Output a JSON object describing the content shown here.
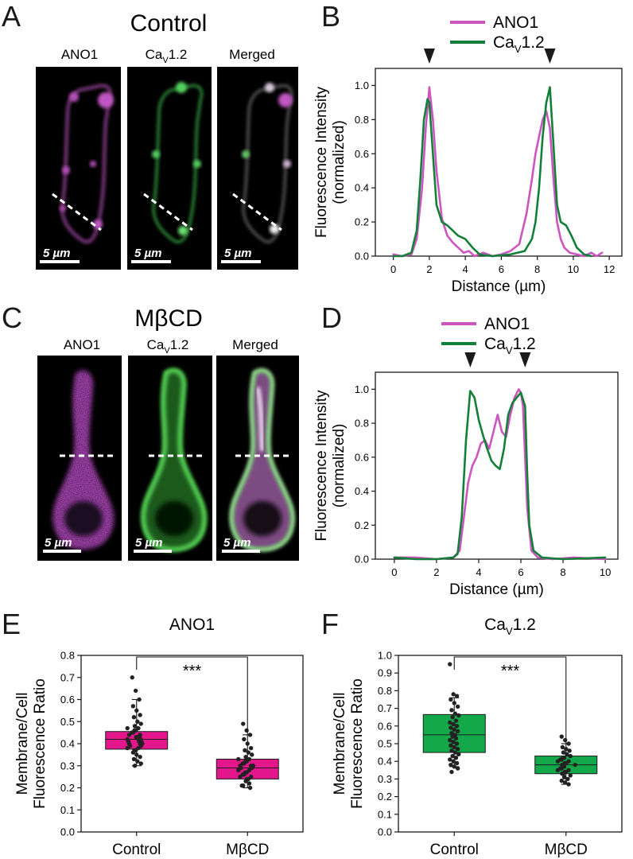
{
  "panel_letters": [
    "A",
    "B",
    "C",
    "D",
    "E",
    "F"
  ],
  "colors": {
    "ano1": "#cc55c0",
    "cav": "#13803a",
    "box_ano1": "#e3178b",
    "box_cav": "#13a84a",
    "axis": "#1a1a1a"
  },
  "icons": {
    "marker": "black-down-triangle-icon",
    "scale": "white-scale-bar"
  },
  "panel_A": {
    "title": "Control",
    "channels": [
      {
        "label": "ANO1",
        "sub": ""
      },
      {
        "label": "Ca",
        "sub": "V",
        "suffix": "1.2"
      },
      {
        "label": "Merged",
        "sub": ""
      }
    ],
    "scale_label": "5 µm"
  },
  "panel_C": {
    "title": "MβCD",
    "channels": [
      {
        "label": "ANO1",
        "sub": ""
      },
      {
        "label": "Ca",
        "sub": "V",
        "suffix": "1.2"
      },
      {
        "label": "Merged",
        "sub": ""
      }
    ],
    "scale_label": "5 µm"
  },
  "chart_data": [
    {
      "id": "B",
      "type": "line",
      "title": "",
      "xlabel": "Distance (µm)",
      "ylabel_lines": [
        "Fluorescence Intensity",
        "(normalized)"
      ],
      "xlim": [
        -1,
        12.7
      ],
      "ylim": [
        0,
        1.1
      ],
      "xticks": [
        0,
        2,
        4,
        6,
        8,
        10,
        12
      ],
      "yticks": [
        0.0,
        0.2,
        0.4,
        0.6,
        0.8,
        1.0
      ],
      "legend": "top-center",
      "markers_x": [
        2.0,
        8.7
      ],
      "series": [
        {
          "name": "ANO1",
          "sub": "",
          "color": "#cc55c0",
          "x": [
            0,
            0.5,
            1.0,
            1.3,
            1.6,
            1.8,
            2.0,
            2.2,
            2.4,
            2.7,
            3.0,
            3.3,
            3.6,
            3.9,
            4.2,
            4.5,
            5.0,
            5.5,
            6.0,
            6.5,
            7.0,
            7.4,
            7.7,
            7.9,
            8.1,
            8.3,
            8.5,
            8.7,
            8.9,
            9.1,
            9.3,
            9.5,
            9.8,
            10.2,
            10.6,
            11.0,
            11.3,
            11.6
          ],
          "y": [
            0.01,
            0.0,
            0.01,
            0.1,
            0.4,
            0.75,
            0.99,
            0.8,
            0.5,
            0.22,
            0.12,
            0.08,
            0.05,
            0.02,
            0.03,
            0.0,
            0.02,
            0.0,
            0.01,
            0.03,
            0.07,
            0.25,
            0.45,
            0.6,
            0.7,
            0.8,
            0.85,
            0.75,
            0.45,
            0.2,
            0.1,
            0.05,
            0.02,
            0.01,
            0.0,
            0.02,
            0.0,
            0.02
          ]
        },
        {
          "name": "Ca",
          "sub": "V",
          "suffix": "1.2",
          "color": "#13803a",
          "x": [
            0,
            0.5,
            1.0,
            1.3,
            1.5,
            1.7,
            1.9,
            2.0,
            2.2,
            2.4,
            2.7,
            3.0,
            3.3,
            3.6,
            4.0,
            4.4,
            4.8,
            5.5,
            6.5,
            7.3,
            7.7,
            7.9,
            8.1,
            8.3,
            8.5,
            8.7,
            8.9,
            9.1,
            9.3,
            9.6,
            9.9,
            10.2,
            10.6,
            11.0
          ],
          "y": [
            0.0,
            0.0,
            0.02,
            0.15,
            0.45,
            0.8,
            0.92,
            0.9,
            0.6,
            0.3,
            0.2,
            0.18,
            0.15,
            0.12,
            0.1,
            0.05,
            0.01,
            0.0,
            0.01,
            0.03,
            0.1,
            0.2,
            0.4,
            0.7,
            0.9,
            0.99,
            0.65,
            0.3,
            0.2,
            0.18,
            0.12,
            0.05,
            0.01,
            0.0
          ]
        }
      ]
    },
    {
      "id": "D",
      "type": "line",
      "title": "",
      "xlabel": "Distance (µm)",
      "ylabel_lines": [
        "Fluorescence Intensity",
        "(normalized)"
      ],
      "xlim": [
        -0.9,
        10.6
      ],
      "ylim": [
        0,
        1.1
      ],
      "xticks": [
        0,
        2,
        4,
        6,
        8,
        10
      ],
      "yticks": [
        0.0,
        0.2,
        0.4,
        0.6,
        0.8,
        1.0
      ],
      "legend": "top-center",
      "markers_x": [
        3.6,
        6.2
      ],
      "series": [
        {
          "name": "ANO1",
          "sub": "",
          "color": "#cc55c0",
          "x": [
            0,
            1,
            2,
            2.8,
            3.1,
            3.3,
            3.5,
            3.7,
            3.9,
            4.1,
            4.3,
            4.5,
            4.7,
            4.9,
            5.1,
            5.3,
            5.5,
            5.7,
            5.9,
            6.0,
            6.1,
            6.2,
            6.3,
            6.5,
            6.8,
            7.5,
            8.5,
            10
          ],
          "y": [
            0.01,
            0.01,
            0.0,
            0.01,
            0.05,
            0.25,
            0.45,
            0.55,
            0.6,
            0.68,
            0.7,
            0.65,
            0.75,
            0.85,
            0.75,
            0.72,
            0.85,
            0.95,
            1.0,
            0.98,
            0.9,
            0.6,
            0.3,
            0.05,
            0.01,
            0.0,
            0.01,
            0.0
          ]
        },
        {
          "name": "Ca",
          "sub": "V",
          "suffix": "1.2",
          "color": "#13803a",
          "x": [
            0,
            1,
            2,
            2.8,
            3.0,
            3.2,
            3.4,
            3.6,
            3.8,
            4.0,
            4.2,
            4.4,
            4.6,
            4.8,
            5.0,
            5.2,
            5.4,
            5.6,
            5.8,
            6.0,
            6.2,
            6.3,
            6.4,
            6.6,
            7.0,
            8.0,
            10
          ],
          "y": [
            0.01,
            0.0,
            0.0,
            0.01,
            0.03,
            0.25,
            0.7,
            0.99,
            0.95,
            0.82,
            0.73,
            0.65,
            0.58,
            0.55,
            0.53,
            0.65,
            0.85,
            0.92,
            0.95,
            0.98,
            0.9,
            0.5,
            0.2,
            0.05,
            0.01,
            0.0,
            0.01
          ]
        }
      ]
    },
    {
      "id": "E",
      "type": "box",
      "title": "ANO1",
      "title_sub": "",
      "categories": [
        "Control",
        "MβCD"
      ],
      "ylabel_lines": [
        "Membrane/Cell",
        "Fluorescence Ratio"
      ],
      "ylim": [
        0,
        0.8
      ],
      "yticks": [
        0.0,
        0.1,
        0.2,
        0.3,
        0.4,
        0.5,
        0.6,
        0.7,
        0.8
      ],
      "significance": "***",
      "color": "#e3178b",
      "boxes": [
        {
          "q1": 0.375,
          "median": 0.42,
          "q3": 0.455,
          "whisker_low": 0.3,
          "whisker_high": 0.6,
          "points": [
            0.7,
            0.64,
            0.6,
            0.57,
            0.55,
            0.53,
            0.52,
            0.5,
            0.49,
            0.48,
            0.47,
            0.47,
            0.46,
            0.46,
            0.45,
            0.45,
            0.44,
            0.44,
            0.43,
            0.43,
            0.43,
            0.42,
            0.42,
            0.42,
            0.41,
            0.41,
            0.41,
            0.4,
            0.4,
            0.4,
            0.39,
            0.39,
            0.38,
            0.38,
            0.37,
            0.37,
            0.36,
            0.35,
            0.34,
            0.33,
            0.32,
            0.31,
            0.3
          ]
        },
        {
          "q1": 0.24,
          "median": 0.29,
          "q3": 0.33,
          "whisker_low": 0.2,
          "whisker_high": 0.44,
          "points": [
            0.49,
            0.46,
            0.44,
            0.42,
            0.4,
            0.38,
            0.37,
            0.36,
            0.35,
            0.34,
            0.33,
            0.33,
            0.32,
            0.32,
            0.31,
            0.31,
            0.3,
            0.3,
            0.3,
            0.29,
            0.29,
            0.28,
            0.28,
            0.27,
            0.27,
            0.26,
            0.26,
            0.25,
            0.25,
            0.24,
            0.24,
            0.23,
            0.22,
            0.21,
            0.21,
            0.2
          ]
        }
      ]
    },
    {
      "id": "F",
      "type": "box",
      "title": "Ca",
      "title_sub": "V",
      "title_suffix": "1.2",
      "categories": [
        "Control",
        "MβCD"
      ],
      "ylabel_lines": [
        "Membrane/Cell",
        "Fluorescence Ratio"
      ],
      "ylim": [
        0,
        1.0
      ],
      "yticks": [
        0.0,
        0.1,
        0.2,
        0.3,
        0.4,
        0.5,
        0.6,
        0.7,
        0.8,
        0.9,
        1.0
      ],
      "significance": "***",
      "color": "#13a84a",
      "boxes": [
        {
          "q1": 0.45,
          "median": 0.55,
          "q3": 0.665,
          "whisker_low": 0.37,
          "whisker_high": 0.76,
          "points": [
            0.95,
            0.78,
            0.77,
            0.75,
            0.73,
            0.71,
            0.69,
            0.67,
            0.66,
            0.65,
            0.63,
            0.62,
            0.61,
            0.6,
            0.59,
            0.58,
            0.57,
            0.56,
            0.55,
            0.55,
            0.54,
            0.53,
            0.52,
            0.51,
            0.5,
            0.49,
            0.48,
            0.47,
            0.46,
            0.45,
            0.44,
            0.43,
            0.42,
            0.41,
            0.4,
            0.39,
            0.38,
            0.37,
            0.36,
            0.34
          ]
        },
        {
          "q1": 0.33,
          "median": 0.38,
          "q3": 0.43,
          "whisker_low": 0.27,
          "whisker_high": 0.5,
          "points": [
            0.54,
            0.52,
            0.5,
            0.48,
            0.47,
            0.46,
            0.45,
            0.44,
            0.43,
            0.42,
            0.42,
            0.41,
            0.41,
            0.4,
            0.4,
            0.39,
            0.39,
            0.38,
            0.38,
            0.38,
            0.37,
            0.37,
            0.36,
            0.36,
            0.35,
            0.35,
            0.34,
            0.34,
            0.33,
            0.33,
            0.32,
            0.31,
            0.3,
            0.29,
            0.28,
            0.27
          ]
        }
      ]
    }
  ]
}
